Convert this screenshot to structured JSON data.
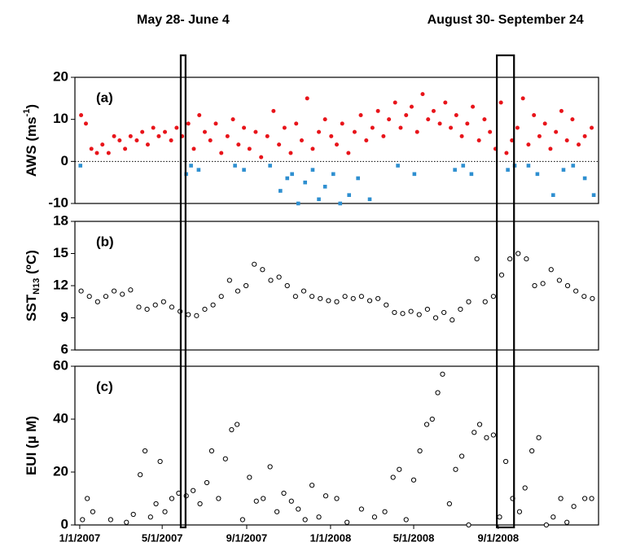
{
  "chart_data": [
    {
      "type": "scatter",
      "panel_label": "(a)",
      "y_label": {
        "text": "AWS (ms",
        "sup": "-1",
        "after": ")"
      },
      "xlim": [
        "2006-12-25",
        "2009-01-25"
      ],
      "ylim": [
        -10,
        20
      ],
      "yticks": [
        -10,
        0,
        10,
        20
      ],
      "zero_line": true,
      "series": [
        {
          "color": "#e8141a",
          "marker": "circle",
          "x": [
            "2007-01-03",
            "2007-01-10",
            "2007-01-18",
            "2007-01-26",
            "2007-02-03",
            "2007-02-12",
            "2007-02-20",
            "2007-02-28",
            "2007-03-08",
            "2007-03-16",
            "2007-03-25",
            "2007-04-02",
            "2007-04-10",
            "2007-04-18",
            "2007-04-26",
            "2007-05-05",
            "2007-05-14",
            "2007-05-22",
            "2007-05-30",
            "2007-06-08",
            "2007-06-16",
            "2007-06-24",
            "2007-07-02",
            "2007-07-10",
            "2007-07-18",
            "2007-07-26",
            "2007-08-04",
            "2007-08-12",
            "2007-08-20",
            "2007-08-28",
            "2007-09-05",
            "2007-09-14",
            "2007-09-22",
            "2007-10-01",
            "2007-10-10",
            "2007-10-18",
            "2007-10-26",
            "2007-11-04",
            "2007-11-12",
            "2007-11-20",
            "2007-11-28",
            "2007-12-06",
            "2007-12-15",
            "2007-12-24",
            "2008-01-02",
            "2008-01-10",
            "2008-01-18",
            "2008-01-27",
            "2008-02-05",
            "2008-02-14",
            "2008-02-22",
            "2008-03-02",
            "2008-03-10",
            "2008-03-18",
            "2008-03-26",
            "2008-04-04",
            "2008-04-12",
            "2008-04-20",
            "2008-04-28",
            "2008-05-06",
            "2008-05-14",
            "2008-05-22",
            "2008-05-30",
            "2008-06-08",
            "2008-06-16",
            "2008-06-24",
            "2008-07-02",
            "2008-07-10",
            "2008-07-18",
            "2008-07-26",
            "2008-08-04",
            "2008-08-12",
            "2008-08-20",
            "2008-08-28",
            "2008-09-05",
            "2008-09-13",
            "2008-09-21",
            "2008-09-29",
            "2008-10-07",
            "2008-10-15",
            "2008-10-23",
            "2008-10-31",
            "2008-11-08",
            "2008-11-16",
            "2008-11-24",
            "2008-12-02",
            "2008-12-10",
            "2008-12-18",
            "2008-12-27",
            "2009-01-05",
            "2009-01-15"
          ],
          "values": [
            11,
            9,
            3,
            2,
            4,
            2,
            6,
            5,
            3,
            6,
            5,
            7,
            4,
            8,
            6,
            7,
            5,
            8,
            6,
            9,
            3,
            11,
            7,
            5,
            9,
            2,
            6,
            10,
            4,
            8,
            3,
            7,
            1,
            6,
            12,
            4,
            8,
            2,
            9,
            5,
            15,
            3,
            7,
            10,
            6,
            4,
            9,
            2,
            7,
            11,
            5,
            8,
            12,
            6,
            10,
            14,
            8,
            11,
            13,
            7,
            16,
            10,
            12,
            9,
            14,
            8,
            11,
            6,
            9,
            13,
            5,
            10,
            7,
            3,
            14,
            2,
            5,
            8,
            15,
            4,
            11,
            6,
            9,
            3,
            7,
            12,
            5,
            10,
            4,
            6,
            8
          ]
        },
        {
          "color": "#2e8fd0",
          "marker": "square",
          "x": [
            "2007-01-02",
            "2007-06-05",
            "2007-06-12",
            "2007-06-23",
            "2007-08-15",
            "2007-08-28",
            "2007-10-05",
            "2007-10-20",
            "2007-10-30",
            "2007-11-06",
            "2007-11-15",
            "2007-11-25",
            "2007-12-06",
            "2007-12-15",
            "2007-12-24",
            "2008-01-05",
            "2008-01-15",
            "2008-01-28",
            "2008-02-10",
            "2008-02-27",
            "2008-04-08",
            "2008-05-02",
            "2008-06-30",
            "2008-07-12",
            "2008-07-24",
            "2008-09-15",
            "2008-09-25",
            "2008-10-15",
            "2008-10-28",
            "2008-11-20",
            "2008-12-05",
            "2008-12-19",
            "2009-01-05",
            "2009-01-18"
          ],
          "values": [
            -1,
            -3,
            -1,
            -2,
            -1,
            -2,
            -1,
            -7,
            -4,
            -3,
            -10,
            -5,
            -2,
            -9,
            -6,
            -3,
            -10,
            -8,
            -4,
            -9,
            -1,
            -3,
            -2,
            -1,
            -3,
            -2,
            -1,
            -1,
            -3,
            -8,
            -2,
            -1,
            -4,
            -8
          ]
        }
      ]
    },
    {
      "type": "scatter",
      "panel_label": "(b)",
      "y_label": {
        "text": "SST",
        "sub": "N13",
        "after": " (ºC)"
      },
      "xlim": [
        "2006-12-25",
        "2009-01-25"
      ],
      "ylim": [
        6,
        18
      ],
      "yticks": [
        6,
        9,
        12,
        15,
        18
      ],
      "series": [
        {
          "color": "#000000",
          "marker": "open-circle",
          "x": [
            "2007-01-03",
            "2007-01-15",
            "2007-01-27",
            "2007-02-08",
            "2007-02-20",
            "2007-03-04",
            "2007-03-16",
            "2007-03-28",
            "2007-04-09",
            "2007-04-21",
            "2007-05-03",
            "2007-05-15",
            "2007-05-27",
            "2007-06-08",
            "2007-06-20",
            "2007-07-02",
            "2007-07-14",
            "2007-07-26",
            "2007-08-07",
            "2007-08-19",
            "2007-08-31",
            "2007-09-12",
            "2007-09-24",
            "2007-10-06",
            "2007-10-18",
            "2007-10-30",
            "2007-11-11",
            "2007-11-23",
            "2007-12-05",
            "2007-12-17",
            "2007-12-29",
            "2008-01-10",
            "2008-01-22",
            "2008-02-03",
            "2008-02-15",
            "2008-02-27",
            "2008-03-10",
            "2008-03-22",
            "2008-04-03",
            "2008-04-15",
            "2008-04-27",
            "2008-05-09",
            "2008-05-21",
            "2008-06-02",
            "2008-06-14",
            "2008-06-26",
            "2008-07-08",
            "2008-07-20",
            "2008-08-01",
            "2008-08-13",
            "2008-08-25",
            "2008-09-06",
            "2008-09-18",
            "2008-09-30",
            "2008-10-12",
            "2008-10-24",
            "2008-11-05",
            "2008-11-17",
            "2008-11-29",
            "2008-12-11",
            "2008-12-23",
            "2009-01-04",
            "2009-01-16"
          ],
          "values": [
            11.5,
            11,
            10.5,
            11,
            11.5,
            11.2,
            11.6,
            10,
            9.8,
            10.2,
            10.5,
            10,
            9.6,
            9.3,
            9.2,
            9.8,
            10.2,
            11,
            12.5,
            11.5,
            12,
            14,
            13.5,
            12.5,
            12.8,
            12,
            11,
            11.5,
            11,
            10.8,
            10.6,
            10.5,
            11,
            10.8,
            11,
            10.6,
            10.8,
            10.2,
            9.5,
            9.4,
            9.6,
            9.3,
            9.8,
            9,
            9.5,
            8.8,
            9.8,
            10.5,
            14.5,
            10.5,
            11,
            13,
            14.5,
            15,
            14.5,
            12,
            12.2,
            13.5,
            12.5,
            12,
            11.5,
            11,
            10.8
          ]
        }
      ]
    },
    {
      "type": "scatter",
      "panel_label": "(c)",
      "y_label": {
        "text": "EUI (µ M)"
      },
      "xlim": [
        "2006-12-25",
        "2009-01-25"
      ],
      "ylim": [
        0,
        60
      ],
      "yticks": [
        0,
        20,
        40,
        60
      ],
      "xticks": [
        {
          "value": "2007-01-01",
          "label": "1/1/2007"
        },
        {
          "value": "2007-05-01",
          "label": "5/1/2007"
        },
        {
          "value": "2007-09-01",
          "label": "9/1/2007"
        },
        {
          "value": "2008-01-01",
          "label": "1/1/2008"
        },
        {
          "value": "2008-05-01",
          "label": "5/1/2008"
        },
        {
          "value": "2008-09-01",
          "label": "9/1/2008"
        }
      ],
      "series": [
        {
          "color": "#000000",
          "marker": "open-circle",
          "x": [
            "2007-01-05",
            "2007-01-12",
            "2007-01-20",
            "2007-02-15",
            "2007-03-10",
            "2007-03-20",
            "2007-03-30",
            "2007-04-06",
            "2007-04-14",
            "2007-04-22",
            "2007-04-28",
            "2007-05-05",
            "2007-05-15",
            "2007-05-25",
            "2007-06-05",
            "2007-06-15",
            "2007-06-25",
            "2007-07-05",
            "2007-07-12",
            "2007-07-22",
            "2007-08-01",
            "2007-08-10",
            "2007-08-18",
            "2007-08-26",
            "2007-09-05",
            "2007-09-15",
            "2007-09-25",
            "2007-10-05",
            "2007-10-15",
            "2007-10-25",
            "2007-11-05",
            "2007-11-15",
            "2007-11-25",
            "2007-12-05",
            "2007-12-15",
            "2007-12-25",
            "2008-01-10",
            "2008-01-25",
            "2008-02-15",
            "2008-03-05",
            "2008-03-20",
            "2008-04-01",
            "2008-04-10",
            "2008-04-20",
            "2008-05-01",
            "2008-05-10",
            "2008-05-20",
            "2008-05-28",
            "2008-06-05",
            "2008-06-12",
            "2008-06-22",
            "2008-07-01",
            "2008-07-10",
            "2008-07-20",
            "2008-07-28",
            "2008-08-05",
            "2008-08-15",
            "2008-08-25",
            "2008-09-03",
            "2008-09-12",
            "2008-09-22",
            "2008-10-02",
            "2008-10-10",
            "2008-10-20",
            "2008-10-30",
            "2008-11-10",
            "2008-11-20",
            "2008-12-01",
            "2008-12-10",
            "2008-12-20",
            "2009-01-05",
            "2009-01-15"
          ],
          "values": [
            2,
            10,
            5,
            2,
            1,
            4,
            19,
            28,
            3,
            8,
            24,
            5,
            10,
            12,
            11,
            13,
            8,
            16,
            28,
            10,
            25,
            36,
            38,
            2,
            18,
            9,
            10,
            22,
            5,
            12,
            9,
            6,
            2,
            15,
            3,
            11,
            10,
            1,
            6,
            3,
            5,
            18,
            21,
            2,
            17,
            28,
            38,
            40,
            50,
            57,
            8,
            21,
            26,
            0,
            35,
            38,
            33,
            34,
            3,
            24,
            10,
            5,
            14,
            28,
            33,
            0,
            3,
            10,
            1,
            7,
            10,
            10
          ]
        }
      ]
    }
  ],
  "highlights": [
    {
      "label": "May 28- June 4",
      "start": "2007-05-28",
      "end": "2007-06-04"
    },
    {
      "label": "August 30- September 24",
      "start": "2008-08-30",
      "end": "2008-09-24"
    }
  ]
}
